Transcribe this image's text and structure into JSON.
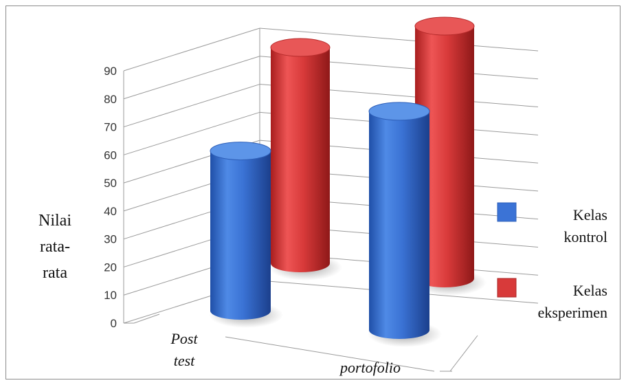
{
  "chart_data": {
    "type": "bar",
    "style": "3d-cylinder",
    "categories": [
      "Post test",
      "portofolio"
    ],
    "category_lines": [
      [
        "Post",
        "test"
      ],
      [
        "portofolio"
      ]
    ],
    "series": [
      {
        "name": "Kelas kontrol",
        "name_lines": [
          "Kelas",
          "kontrol"
        ],
        "color": "#3b73d6",
        "values": [
          57,
          78
        ]
      },
      {
        "name": "Kelas eksperimen",
        "name_lines": [
          "Kelas",
          "eksperimen"
        ],
        "color": "#d83a3a",
        "values": [
          77,
          90
        ]
      }
    ],
    "ylabel": "Nilai rata-rata",
    "ylabel_lines": [
      "Nilai",
      "rata-",
      "rata"
    ],
    "ylim": [
      0,
      90
    ],
    "yticks": [
      0,
      10,
      20,
      30,
      40,
      50,
      60,
      70,
      80,
      90
    ],
    "grid": true,
    "legend_position": "right"
  }
}
